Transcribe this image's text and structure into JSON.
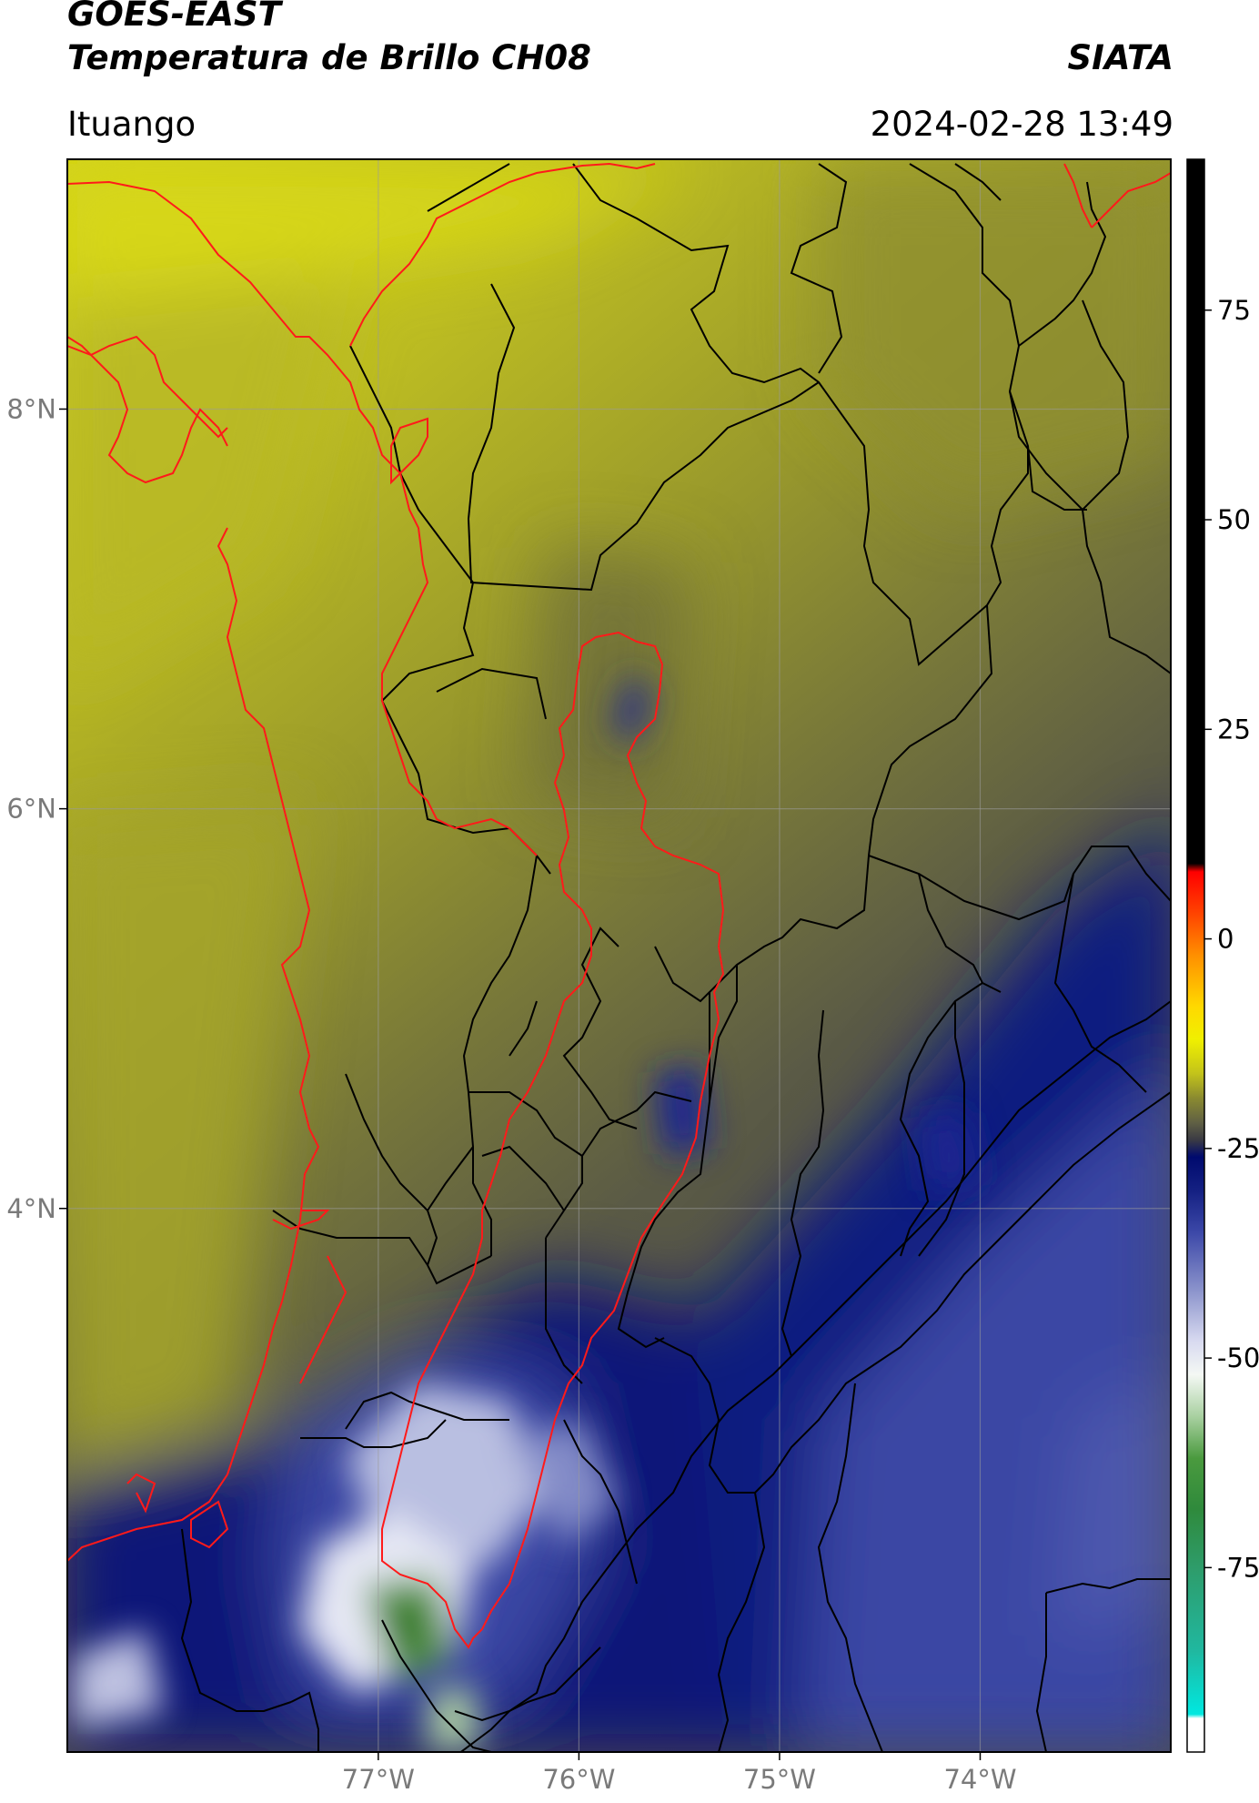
{
  "header": {
    "title_line1": "GOES-EAST",
    "title_line2": "Temperatura de Brillo CH08",
    "brand": "SIATA",
    "location": "Ituango",
    "datetime": "2024-02-28 13:49"
  },
  "map": {
    "lon_range": [
      -78.55,
      -73.05
    ],
    "lat_range": [
      1.28,
      9.25
    ],
    "lon_ticks": [
      {
        "value": -77,
        "label": "77°W"
      },
      {
        "value": -76,
        "label": "76°W"
      },
      {
        "value": -75,
        "label": "75°W"
      },
      {
        "value": -74,
        "label": "74°W"
      }
    ],
    "lat_ticks": [
      {
        "value": 8,
        "label": "8°N"
      },
      {
        "value": 6,
        "label": "6°N"
      },
      {
        "value": 4,
        "label": "4°N"
      }
    ],
    "gridlines": true,
    "borders_color": "#000000",
    "highlight_color": "#ff1a1a"
  },
  "colorbar": {
    "range": [
      -97,
      93
    ],
    "ticks": [
      {
        "value": 75,
        "label": "75"
      },
      {
        "value": 50,
        "label": "50"
      },
      {
        "value": 25,
        "label": "25"
      },
      {
        "value": 0,
        "label": "0"
      },
      {
        "value": -25,
        "label": "-25"
      },
      {
        "value": -50,
        "label": "-50"
      },
      {
        "value": -75,
        "label": "-75"
      }
    ],
    "stops": [
      {
        "value": -97,
        "color": "#ffffff"
      },
      {
        "value": -93,
        "color": "#ffffff"
      },
      {
        "value": -92.5,
        "color": "#00e8e0"
      },
      {
        "value": -85,
        "color": "#20b8a0"
      },
      {
        "value": -75,
        "color": "#2e9c6a"
      },
      {
        "value": -68,
        "color": "#2f8a3c"
      },
      {
        "value": -62,
        "color": "#4a9a3e"
      },
      {
        "value": -57,
        "color": "#a8d0a0"
      },
      {
        "value": -52,
        "color": "#f4f8f4"
      },
      {
        "value": -48,
        "color": "#d8daf0"
      },
      {
        "value": -42,
        "color": "#8c94cc"
      },
      {
        "value": -35,
        "color": "#3c48a8"
      },
      {
        "value": -30,
        "color": "#142082"
      },
      {
        "value": -26,
        "color": "#000a6e"
      },
      {
        "value": -24,
        "color": "#3a3a44"
      },
      {
        "value": -22,
        "color": "#5f5f44"
      },
      {
        "value": -19,
        "color": "#8a8a30"
      },
      {
        "value": -16,
        "color": "#c4c41a"
      },
      {
        "value": -12,
        "color": "#f0f000"
      },
      {
        "value": -8,
        "color": "#ffd800"
      },
      {
        "value": -2,
        "color": "#ff9000"
      },
      {
        "value": 3,
        "color": "#ff4400"
      },
      {
        "value": 8,
        "color": "#ff0000"
      },
      {
        "value": 9,
        "color": "#000000"
      },
      {
        "value": 93,
        "color": "#000000"
      }
    ]
  }
}
